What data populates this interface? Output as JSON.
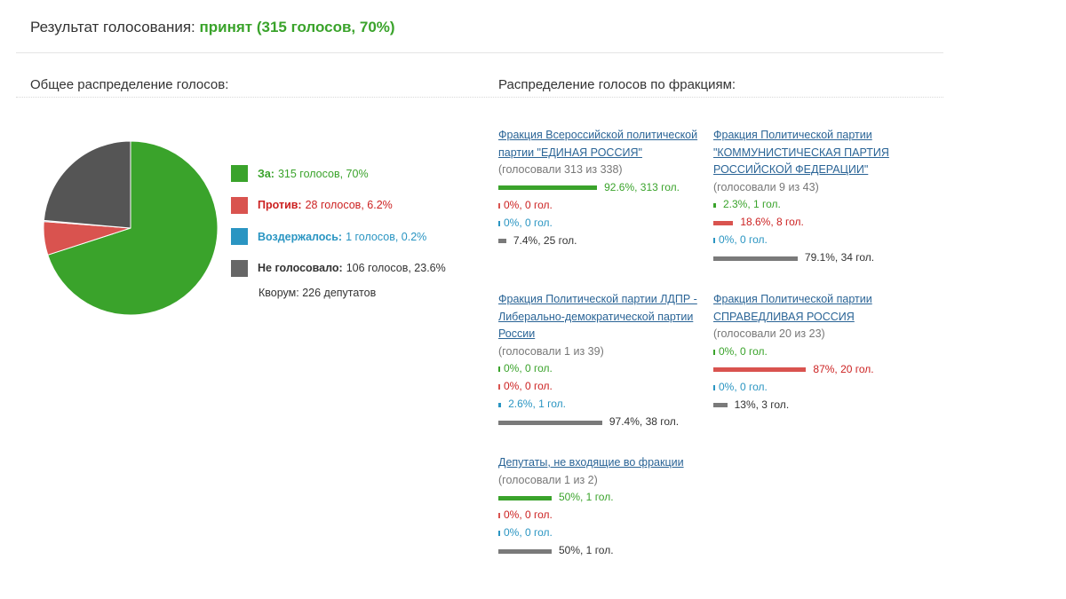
{
  "result": {
    "label": "Результат голосования:",
    "status": "принят (315 голосов, 70%)"
  },
  "overall": {
    "title": "Общее распределение голосов:",
    "colors": {
      "za": "#3aa32b",
      "protiv": "#d9534f",
      "vozderzh": "#2a95c2",
      "ne": "#555555"
    },
    "legend": [
      {
        "key": "za",
        "label": "За:",
        "text": "315 голосов, 70%",
        "value": 70
      },
      {
        "key": "protiv",
        "label": "Против:",
        "text": "28 голосов, 6.2%",
        "value": 6.2
      },
      {
        "key": "vozderzh",
        "label": "Воздержалось:",
        "text": "1 голосов, 0.2%",
        "value": 0.2
      },
      {
        "key": "ne",
        "label": "Не голосовало:",
        "text": "106 голосов, 23.6%",
        "value": 23.6
      }
    ],
    "quorum": "Кворум: 226 депутатов"
  },
  "factions_title": "Распределение голосов по фракциям:",
  "factions": [
    {
      "name": "Фракция Всероссийской политической партии \"ЕДИНАЯ РОССИЯ\"",
      "stat": "(голосовали 313 из 338)",
      "za": {
        "pct": 92.6,
        "text": "92.6%, 313 гол."
      },
      "protiv": {
        "pct": 0,
        "text": "0%, 0 гол."
      },
      "vozderzh": {
        "pct": 0,
        "text": "0%, 0 гол."
      },
      "ne": {
        "pct": 7.4,
        "text": "7.4%, 25 гол."
      }
    },
    {
      "name": "Фракция Политической партии \"КОММУНИСТИЧЕСКАЯ ПАРТИЯ РОССИЙСКОЙ ФЕДЕРАЦИИ\"",
      "stat": "(голосовали 9 из 43)",
      "za": {
        "pct": 2.3,
        "text": "2.3%, 1 гол."
      },
      "protiv": {
        "pct": 18.6,
        "text": "18.6%, 8 гол."
      },
      "vozderzh": {
        "pct": 0,
        "text": "0%, 0 гол."
      },
      "ne": {
        "pct": 79.1,
        "text": "79.1%, 34 гол."
      }
    },
    {
      "name": "Фракция Политической партии ЛДПР - Либерально-демократической партии России",
      "stat": "(голосовали 1 из 39)",
      "za": {
        "pct": 0,
        "text": "0%, 0 гол."
      },
      "protiv": {
        "pct": 0,
        "text": "0%, 0 гол."
      },
      "vozderzh": {
        "pct": 2.6,
        "text": "2.6%, 1 гол."
      },
      "ne": {
        "pct": 97.4,
        "text": "97.4%, 38 гол."
      }
    },
    {
      "name": "Фракция Политической партии СПРАВЕДЛИВАЯ РОССИЯ",
      "stat": "(голосовали 20 из 23)",
      "za": {
        "pct": 0,
        "text": "0%, 0 гол."
      },
      "protiv": {
        "pct": 87,
        "text": "87%, 20 гол."
      },
      "vozderzh": {
        "pct": 0,
        "text": "0%, 0 гол."
      },
      "ne": {
        "pct": 13,
        "text": "13%, 3 гол."
      }
    },
    {
      "name": "Депутаты, не входящие во фракции",
      "stat": "(голосовали 1 из 2)",
      "za": {
        "pct": 50,
        "text": "50%, 1 гол."
      },
      "protiv": {
        "pct": 0,
        "text": "0%, 0 гол."
      },
      "vozderzh": {
        "pct": 0,
        "text": "0%, 0 гол."
      },
      "ne": {
        "pct": 50,
        "text": "50%, 1 гол."
      }
    }
  ]
}
